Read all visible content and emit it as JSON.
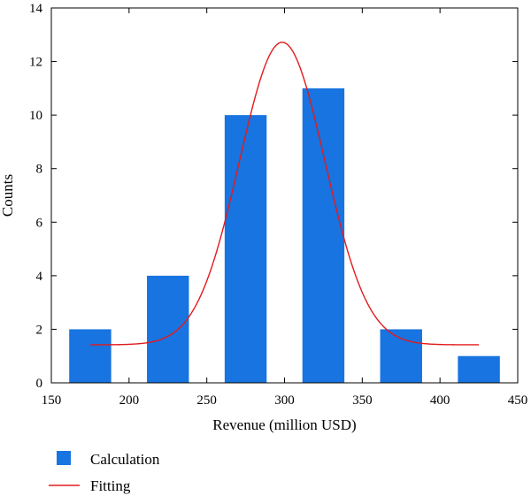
{
  "chart_data": {
    "type": "bar",
    "title": "",
    "xlabel": "Revenue (million USD)",
    "ylabel": "Counts",
    "xlim": [
      150,
      450
    ],
    "ylim": [
      0,
      14
    ],
    "xticks": [
      150,
      200,
      250,
      300,
      350,
      400,
      450
    ],
    "yticks": [
      0,
      2,
      4,
      6,
      8,
      10,
      12,
      14
    ],
    "grid": false,
    "legend_position": "bottom-left, below plot",
    "colors": {
      "bars": "#1874e0",
      "fit": "#e31a1c"
    },
    "series": [
      {
        "name": "Calculation",
        "type": "bar",
        "bins": [
          {
            "center": 175,
            "width": 27,
            "value": 2
          },
          {
            "center": 225,
            "width": 27,
            "value": 4
          },
          {
            "center": 275,
            "width": 27,
            "value": 10
          },
          {
            "center": 325,
            "width": 27,
            "value": 11
          },
          {
            "center": 375,
            "width": 27,
            "value": 2
          },
          {
            "center": 425,
            "width": 27,
            "value": 1
          }
        ]
      },
      {
        "name": "Fitting",
        "type": "line",
        "model": "gaussian",
        "x_range": [
          175,
          425
        ],
        "baseline": 1.42,
        "amplitude": 11.3,
        "mean": 298.5,
        "sigma": 27.5
      }
    ]
  }
}
